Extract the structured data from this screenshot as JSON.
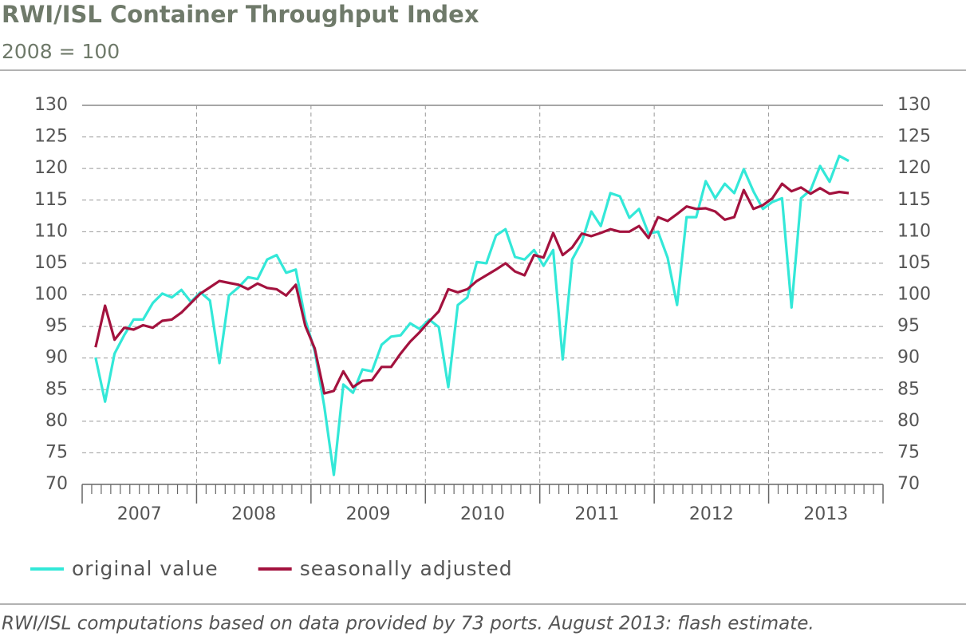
{
  "chart_data": {
    "type": "line",
    "title": "RWI/ISL Container Throughput Index",
    "subtitle": "2008 = 100",
    "footnote": "RWI/ISL computations based on data provided by 73 ports. August 2013: flash estimate.",
    "x": [
      2007.117,
      2007.2,
      2007.283,
      2007.367,
      2007.45,
      2007.533,
      2007.617,
      2007.7,
      2007.783,
      2007.867,
      2007.95,
      2008.033,
      2008.117,
      2008.2,
      2008.283,
      2008.367,
      2008.45,
      2008.533,
      2008.617,
      2008.7,
      2008.783,
      2008.867,
      2008.95,
      2009.033,
      2009.117,
      2009.2,
      2009.283,
      2009.367,
      2009.45,
      2009.533,
      2009.617,
      2009.7,
      2009.783,
      2009.867,
      2009.95,
      2010.033,
      2010.117,
      2010.2,
      2010.283,
      2010.367,
      2010.45,
      2010.533,
      2010.617,
      2010.7,
      2010.783,
      2010.867,
      2010.95,
      2011.033,
      2011.117,
      2011.2,
      2011.283,
      2011.367,
      2011.45,
      2011.533,
      2011.617,
      2011.7,
      2011.783,
      2011.867,
      2011.95,
      2012.033,
      2012.117,
      2012.2,
      2012.283,
      2012.367,
      2012.45,
      2012.533,
      2012.617,
      2012.7,
      2012.783,
      2012.867,
      2012.95,
      2013.033,
      2013.117,
      2013.2,
      2013.283,
      2013.367,
      2013.45,
      2013.533,
      2013.617,
      2013.7
    ],
    "series": [
      {
        "name": "original value",
        "color": "#33e8d8",
        "values": [
          90.1,
          83.1,
          90.7,
          93.6,
          96.1,
          96.1,
          98.7,
          100.2,
          99.6,
          100.8,
          98.9,
          100.4,
          99.1,
          89.2,
          99.9,
          101.2,
          102.8,
          102.5,
          105.6,
          106.3,
          103.5,
          104.0,
          96.1,
          91.1,
          82.3,
          71.5,
          85.8,
          84.5,
          88.2,
          87.9,
          92.1,
          93.4,
          93.6,
          95.5,
          94.6,
          96.1,
          94.9,
          85.4,
          98.4,
          99.6,
          105.2,
          105.0,
          109.4,
          110.4,
          106.0,
          105.6,
          107.1,
          104.6,
          107.1,
          89.8,
          105.6,
          108.4,
          113.2,
          110.9,
          116.1,
          115.6,
          112.2,
          113.6,
          109.7,
          110.0,
          105.9,
          98.4,
          112.3,
          112.3,
          118.0,
          115.3,
          117.6,
          116.1,
          119.9,
          116.4,
          113.6,
          114.7,
          115.3,
          98.0,
          115.3,
          116.6,
          120.4,
          117.9,
          122.0,
          121.2
        ]
      },
      {
        "name": "seasonally adjusted",
        "color": "#a3123e",
        "values": [
          91.7,
          98.3,
          92.9,
          94.8,
          94.5,
          95.2,
          94.8,
          95.9,
          96.1,
          97.2,
          98.7,
          100.2,
          101.2,
          102.2,
          101.9,
          101.6,
          100.9,
          101.8,
          101.1,
          100.9,
          99.9,
          101.6,
          95.1,
          91.5,
          84.4,
          84.8,
          87.9,
          85.4,
          86.4,
          86.5,
          88.6,
          88.6,
          90.7,
          92.6,
          94.1,
          95.8,
          97.4,
          100.9,
          100.4,
          100.9,
          102.2,
          103.1,
          104.0,
          105.0,
          103.7,
          103.1,
          106.3,
          105.9,
          109.8,
          106.3,
          107.5,
          109.7,
          109.3,
          109.8,
          110.4,
          110.0,
          110.0,
          110.9,
          109.0,
          112.3,
          111.7,
          112.8,
          114.0,
          113.6,
          113.7,
          113.2,
          111.9,
          112.3,
          116.6,
          113.6,
          114.2,
          115.3,
          117.6,
          116.4,
          117.0,
          116.0,
          116.9,
          116.0,
          116.3,
          116.1
        ]
      }
    ],
    "xlim": [
      2007,
      2014
    ],
    "xticks": [
      {
        "value": 2007.5,
        "label": "2007"
      },
      {
        "value": 2008.5,
        "label": "2008"
      },
      {
        "value": 2009.5,
        "label": "2009"
      },
      {
        "value": 2010.5,
        "label": "2010"
      },
      {
        "value": 2011.5,
        "label": "2011"
      },
      {
        "value": 2012.5,
        "label": "2012"
      },
      {
        "value": 2013.5,
        "label": "2013"
      }
    ],
    "ylim": [
      70,
      130
    ],
    "yticks": [
      70,
      75,
      80,
      85,
      90,
      95,
      100,
      105,
      110,
      115,
      120,
      125,
      130
    ],
    "grid": true,
    "legend": "bottom"
  }
}
